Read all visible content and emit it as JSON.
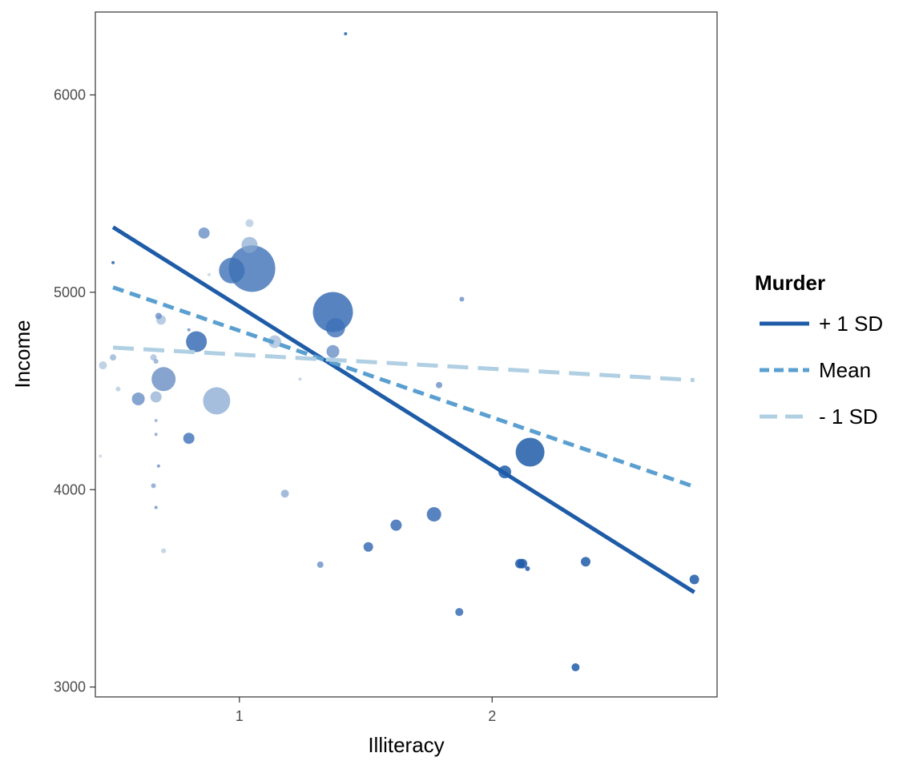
{
  "chart_data": {
    "type": "scatter",
    "xlabel": "Illiteracy",
    "ylabel": "Income",
    "xlim": [
      0.43,
      2.89
    ],
    "ylim": [
      2950,
      6420
    ],
    "x_ticks": [
      1,
      2
    ],
    "x_tick_labels": [
      "1",
      "2"
    ],
    "y_ticks": [
      3000,
      4000,
      5000,
      6000
    ],
    "y_tick_labels": [
      "3000",
      "4000",
      "5000",
      "6000"
    ],
    "grid": false,
    "legend": {
      "title": "Murder",
      "position": "right",
      "entries": [
        {
          "label": "+ 1 SD",
          "color": "#1f5ca8",
          "dash": "solid"
        },
        {
          "label": "Mean",
          "color": "#5a9fd0",
          "dash": "dashed"
        },
        {
          "label": "- 1 SD",
          "color": "#b0cfe3",
          "dash": "longdash"
        }
      ]
    },
    "lines": [
      {
        "name": "+ 1 SD",
        "x": [
          0.5,
          2.8
        ],
        "y": [
          5330,
          3480
        ]
      },
      {
        "name": "Mean",
        "x": [
          0.5,
          2.8
        ],
        "y": [
          5025,
          4015
        ]
      },
      {
        "name": "- 1 SD",
        "x": [
          0.5,
          2.8
        ],
        "y": [
          4720,
          4555
        ]
      }
    ],
    "points": [
      {
        "x": 0.5,
        "y": 5150,
        "size": 2,
        "color": "#2d64b0",
        "opacity": 0.85
      },
      {
        "x": 0.5,
        "y": 4670,
        "size": 4,
        "color": "#7fa3cf",
        "opacity": 0.65
      },
      {
        "x": 0.46,
        "y": 4630,
        "size": 5,
        "color": "#9ebad9",
        "opacity": 0.65
      },
      {
        "x": 0.45,
        "y": 4170,
        "size": 2,
        "color": "#b4c9e1",
        "opacity": 0.65
      },
      {
        "x": 0.52,
        "y": 4510,
        "size": 3,
        "color": "#a4bfdc",
        "opacity": 0.65
      },
      {
        "x": 0.6,
        "y": 4460,
        "size": 8,
        "color": "#5e86c0",
        "opacity": 0.75
      },
      {
        "x": 0.67,
        "y": 4470,
        "size": 7,
        "color": "#8aaad2",
        "opacity": 0.7
      },
      {
        "x": 0.7,
        "y": 4560,
        "size": 15,
        "color": "#5d85bf",
        "opacity": 0.75
      },
      {
        "x": 0.68,
        "y": 4880,
        "size": 4,
        "color": "#5f87c1",
        "opacity": 0.75
      },
      {
        "x": 0.69,
        "y": 4860,
        "size": 6,
        "color": "#9ab6d8",
        "opacity": 0.7
      },
      {
        "x": 0.66,
        "y": 4670,
        "size": 4,
        "color": "#9ab6d8",
        "opacity": 0.7
      },
      {
        "x": 0.67,
        "y": 4650,
        "size": 3,
        "color": "#7d9fcc",
        "opacity": 0.7
      },
      {
        "x": 0.67,
        "y": 4350,
        "size": 2,
        "color": "#7d9fcc",
        "opacity": 0.7
      },
      {
        "x": 0.67,
        "y": 4280,
        "size": 2,
        "color": "#6d93c6",
        "opacity": 0.7
      },
      {
        "x": 0.68,
        "y": 4120,
        "size": 2,
        "color": "#5f87c1",
        "opacity": 0.75
      },
      {
        "x": 0.66,
        "y": 4020,
        "size": 3,
        "color": "#6d93c6",
        "opacity": 0.7
      },
      {
        "x": 0.67,
        "y": 3910,
        "size": 2,
        "color": "#5f87c1",
        "opacity": 0.75
      },
      {
        "x": 0.7,
        "y": 3690,
        "size": 3,
        "color": "#a4bfdc",
        "opacity": 0.65
      },
      {
        "x": 0.8,
        "y": 4810,
        "size": 2,
        "color": "#5f87c1",
        "opacity": 0.75
      },
      {
        "x": 0.83,
        "y": 4750,
        "size": 13,
        "color": "#2d64b0",
        "opacity": 0.8
      },
      {
        "x": 0.8,
        "y": 4260,
        "size": 7,
        "color": "#3c70b5",
        "opacity": 0.8
      },
      {
        "x": 0.86,
        "y": 5300,
        "size": 7,
        "color": "#5f87c1",
        "opacity": 0.75
      },
      {
        "x": 0.88,
        "y": 5090,
        "size": 2,
        "color": "#b4c9e1",
        "opacity": 0.65
      },
      {
        "x": 0.91,
        "y": 4450,
        "size": 17,
        "color": "#7fa3cf",
        "opacity": 0.7
      },
      {
        "x": 0.97,
        "y": 5110,
        "size": 16,
        "color": "#3c70b5",
        "opacity": 0.8
      },
      {
        "x": 1.04,
        "y": 5350,
        "size": 5,
        "color": "#a4bfdc",
        "opacity": 0.65
      },
      {
        "x": 1.04,
        "y": 5240,
        "size": 10,
        "color": "#89a9d1",
        "opacity": 0.7
      },
      {
        "x": 1.05,
        "y": 5120,
        "size": 29,
        "color": "#3c70b5",
        "opacity": 0.8
      },
      {
        "x": 1.14,
        "y": 4750,
        "size": 8,
        "color": "#9ab6d8",
        "opacity": 0.7
      },
      {
        "x": 1.18,
        "y": 3980,
        "size": 5,
        "color": "#7d9fcc",
        "opacity": 0.7
      },
      {
        "x": 1.24,
        "y": 4560,
        "size": 2,
        "color": "#a4bfdc",
        "opacity": 0.65
      },
      {
        "x": 1.32,
        "y": 3620,
        "size": 4,
        "color": "#5f87c1",
        "opacity": 0.75
      },
      {
        "x": 1.37,
        "y": 4900,
        "size": 25,
        "color": "#2d64b0",
        "opacity": 0.8
      },
      {
        "x": 1.38,
        "y": 4820,
        "size": 12,
        "color": "#3c70b5",
        "opacity": 0.8
      },
      {
        "x": 1.37,
        "y": 4700,
        "size": 8,
        "color": "#5f87c1",
        "opacity": 0.75
      },
      {
        "x": 1.42,
        "y": 6310,
        "size": 2,
        "color": "#2d64b0",
        "opacity": 0.85
      },
      {
        "x": 1.51,
        "y": 3710,
        "size": 6,
        "color": "#2d64b0",
        "opacity": 0.8
      },
      {
        "x": 1.62,
        "y": 3820,
        "size": 7,
        "color": "#2d64b0",
        "opacity": 0.8
      },
      {
        "x": 1.77,
        "y": 3875,
        "size": 9,
        "color": "#2d64b0",
        "opacity": 0.8
      },
      {
        "x": 1.79,
        "y": 4530,
        "size": 4,
        "color": "#5f87c1",
        "opacity": 0.75
      },
      {
        "x": 1.87,
        "y": 3380,
        "size": 5,
        "color": "#2d64b0",
        "opacity": 0.8
      },
      {
        "x": 1.88,
        "y": 4965,
        "size": 3,
        "color": "#5f87c1",
        "opacity": 0.75
      },
      {
        "x": 2.05,
        "y": 4090,
        "size": 8,
        "color": "#1f5ca8",
        "opacity": 0.85
      },
      {
        "x": 2.11,
        "y": 3625,
        "size": 6,
        "color": "#1f5ca8",
        "opacity": 0.85
      },
      {
        "x": 2.12,
        "y": 3625,
        "size": 6,
        "color": "#1f5ca8",
        "opacity": 0.85
      },
      {
        "x": 2.14,
        "y": 3600,
        "size": 3,
        "color": "#1f5ca8",
        "opacity": 0.85
      },
      {
        "x": 2.15,
        "y": 4190,
        "size": 18,
        "color": "#1f5ca8",
        "opacity": 0.85
      },
      {
        "x": 2.33,
        "y": 3100,
        "size": 5,
        "color": "#1f5ca8",
        "opacity": 0.85
      },
      {
        "x": 2.37,
        "y": 3635,
        "size": 6,
        "color": "#1f5ca8",
        "opacity": 0.85
      },
      {
        "x": 2.8,
        "y": 3545,
        "size": 6,
        "color": "#1f5ca8",
        "opacity": 0.85
      }
    ]
  }
}
